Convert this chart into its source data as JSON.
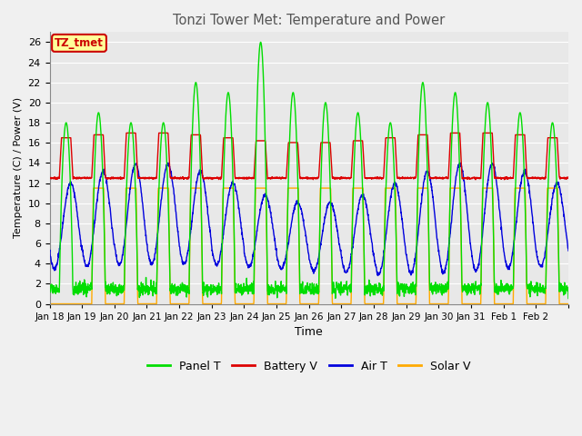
{
  "title": "Tonzi Tower Met: Temperature and Power",
  "xlabel": "Time",
  "ylabel": "Temperature (C) / Power (V)",
  "ylim": [
    0,
    27
  ],
  "yticks": [
    0,
    2,
    4,
    6,
    8,
    10,
    12,
    14,
    16,
    18,
    20,
    22,
    24,
    26
  ],
  "date_labels": [
    "Jan 18",
    "Jan 19",
    "Jan 20",
    "Jan 21",
    "Jan 22",
    "Jan 23",
    "Jan 24",
    "Jan 25",
    "Jan 26",
    "Jan 27",
    "Jan 28",
    "Jan 29",
    "Jan 30",
    "Jan 31",
    "Feb 1",
    "Feb 2"
  ],
  "n_days": 16,
  "colors": {
    "panel_t": "#00dd00",
    "battery_v": "#dd0000",
    "air_t": "#0000dd",
    "solar_v": "#ffaa00"
  },
  "legend_labels": [
    "Panel T",
    "Battery V",
    "Air T",
    "Solar V"
  ],
  "annotation_text": "TZ_tmet",
  "annotation_color": "#cc0000",
  "annotation_bg": "#ffff99",
  "plot_bg": "#e8e8e8",
  "fig_bg": "#f0f0f0",
  "grid_color": "#ffffff",
  "title_color": "#555555"
}
